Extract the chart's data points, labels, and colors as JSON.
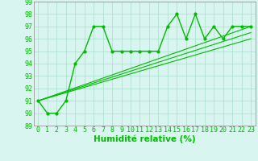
{
  "main_line_x": [
    0,
    1,
    2,
    3,
    4,
    5,
    6,
    7,
    8,
    9,
    10,
    11,
    12,
    13,
    14,
    15,
    16,
    17,
    18,
    19,
    20,
    21,
    22,
    23
  ],
  "main_line_y": [
    91,
    90,
    90,
    91,
    94,
    95,
    97,
    97,
    95,
    95,
    95,
    95,
    95,
    95,
    97,
    98,
    96,
    98,
    96,
    97,
    96,
    97,
    97,
    97
  ],
  "trend_lines": [
    {
      "x": [
        0,
        23
      ],
      "y": [
        91,
        97
      ]
    },
    {
      "x": [
        0,
        23
      ],
      "y": [
        91,
        96.5
      ]
    },
    {
      "x": [
        0,
        23
      ],
      "y": [
        91,
        96
      ]
    }
  ],
  "line_color": "#00bb00",
  "bg_color": "#d8f5f0",
  "grid_color": "#aaddcc",
  "xlabel": "Humidité relative (%)",
  "ylim": [
    89,
    99
  ],
  "xlim": [
    -0.5,
    23.5
  ],
  "yticks": [
    89,
    90,
    91,
    92,
    93,
    94,
    95,
    96,
    97,
    98,
    99
  ],
  "xticks": [
    0,
    1,
    2,
    3,
    4,
    5,
    6,
    7,
    8,
    9,
    10,
    11,
    12,
    13,
    14,
    15,
    16,
    17,
    18,
    19,
    20,
    21,
    22,
    23
  ],
  "xlabel_fontsize": 7.5,
  "tick_fontsize": 6.0
}
